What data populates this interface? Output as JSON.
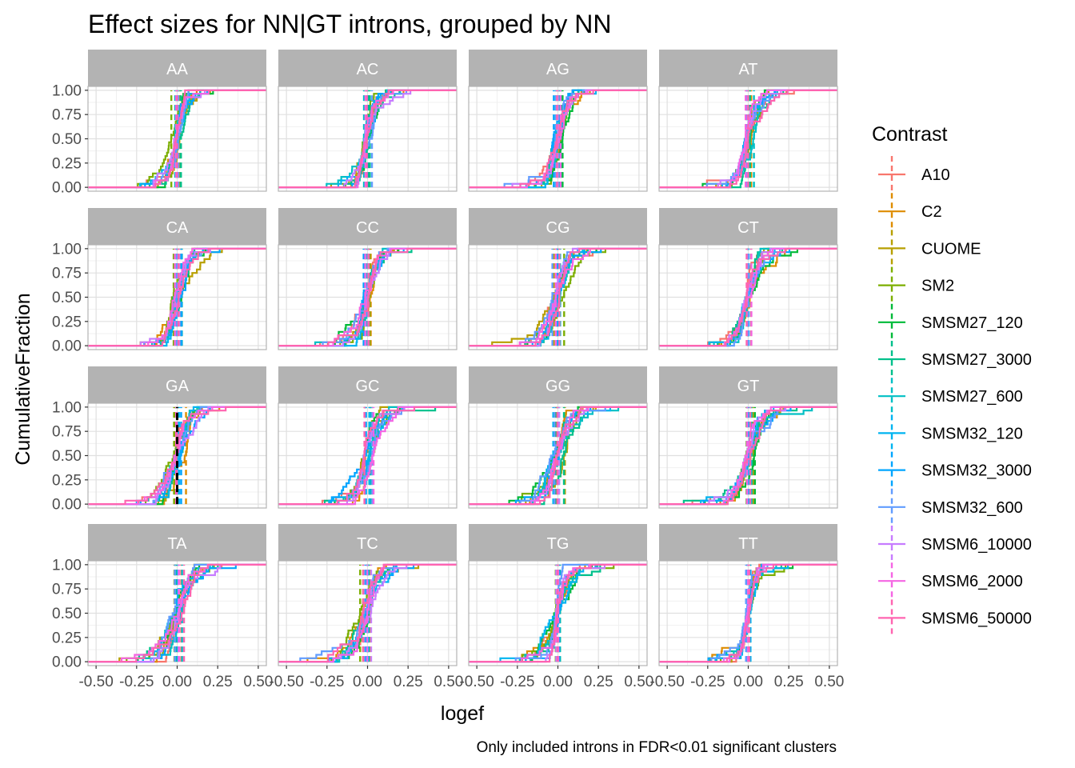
{
  "chart_data": {
    "type": "line",
    "subtype": "ecdf-step-faceted",
    "title": "Effect sizes for NN|GT introns, grouped by NN",
    "xlabel": "logef",
    "ylabel": "CumulativeFraction",
    "caption": "Only included introns in FDR<0.01 significant clusters",
    "xlim": [
      -0.55,
      0.55
    ],
    "ylim": [
      -0.04,
      1.04
    ],
    "x_ticks": [
      -0.5,
      -0.25,
      0.0,
      0.25,
      0.5
    ],
    "x_tick_labels": [
      "-0.50",
      "-0.25",
      "0.00",
      "0.25",
      "0.50"
    ],
    "y_ticks": [
      0,
      0.25,
      0.5,
      0.75,
      1.0
    ],
    "y_tick_labels": [
      "0.00",
      "0.25",
      "0.50",
      "0.75",
      "1.00"
    ],
    "grid": true,
    "legend": {
      "title": "Contrast",
      "position": "right"
    },
    "facets": [
      "AA",
      "AC",
      "AG",
      "AT",
      "CA",
      "CC",
      "CG",
      "CT",
      "GA",
      "GC",
      "GG",
      "GT",
      "TA",
      "TC",
      "TG",
      "TT"
    ],
    "series": [
      {
        "name": "A10",
        "color": "#F8766D"
      },
      {
        "name": "C2",
        "color": "#DE8C00"
      },
      {
        "name": "CUOME",
        "color": "#B79F00"
      },
      {
        "name": "SM2",
        "color": "#7CAE00"
      },
      {
        "name": "SMSM27_120",
        "color": "#00BA38"
      },
      {
        "name": "SMSM27_3000",
        "color": "#00C08B"
      },
      {
        "name": "SMSM27_600",
        "color": "#00BFC4"
      },
      {
        "name": "SMSM32_120",
        "color": "#00B4F0"
      },
      {
        "name": "SMSM32_3000",
        "color": "#00A5FF"
      },
      {
        "name": "SMSM32_600",
        "color": "#619CFF"
      },
      {
        "name": "SMSM6_10000",
        "color": "#C77CFF"
      },
      {
        "name": "SMSM6_2000",
        "color": "#F564E3"
      },
      {
        "name": "SMSM6_50000",
        "color": "#FF64B0"
      }
    ],
    "special_lines": {
      "GA": {
        "name": "reference",
        "x": 0.0,
        "color": "#000000",
        "dashed": true
      }
    }
  }
}
